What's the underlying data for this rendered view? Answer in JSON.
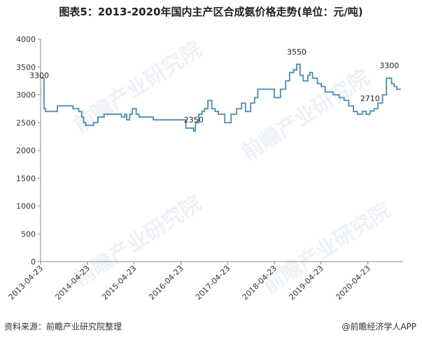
{
  "title": "图表5：2013-2020年国内主产区合成氨价格走势(单位：元/吨)",
  "source": "资料来源：前瞻产业研究院整理",
  "brand": "@前瞻经济学人APP",
  "watermark": "前瞻产业研究院",
  "colors": {
    "line": "#4a8ab3",
    "axis": "#888888",
    "text": "#333333"
  },
  "chart_data": {
    "type": "line",
    "title": "图表5：2013-2020年国内主产区合成氨价格走势(单位：元/吨)",
    "xlabel": "",
    "ylabel": "",
    "ylim": [
      0,
      4000
    ],
    "yticks": [
      0,
      500,
      1000,
      1500,
      2000,
      2500,
      3000,
      3500,
      4000
    ],
    "xlim": [
      "2013-04-23",
      "2021-01-23"
    ],
    "xticks": [
      "2013-04-23",
      "2014-04-23",
      "2015-04-23",
      "2016-04-23",
      "2017-04-23",
      "2018-04-23",
      "2019-04-23",
      "2020-04-23"
    ],
    "grid": false,
    "legend": "none",
    "x": [
      "2013-04-23",
      "2013-05-20",
      "2013-06-01",
      "2013-07-15",
      "2013-09-01",
      "2013-10-20",
      "2014-01-01",
      "2014-02-15",
      "2014-03-10",
      "2014-03-25",
      "2014-04-10",
      "2014-06-10",
      "2014-07-15",
      "2014-09-01",
      "2014-10-01",
      "2014-11-15",
      "2015-01-15",
      "2015-02-10",
      "2015-02-25",
      "2015-03-20",
      "2015-04-10",
      "2015-05-10",
      "2015-06-01",
      "2015-07-01",
      "2015-08-20",
      "2015-09-20",
      "2015-10-25",
      "2016-01-01",
      "2016-03-01",
      "2016-04-23",
      "2016-06-01",
      "2016-08-01",
      "2016-08-15",
      "2016-09-10",
      "2016-10-05",
      "2016-10-25",
      "2016-11-20",
      "2016-12-20",
      "2017-01-15",
      "2017-02-10",
      "2017-03-05",
      "2017-04-01",
      "2017-05-20",
      "2017-07-01",
      "2017-08-10",
      "2017-09-10",
      "2017-10-20",
      "2017-11-20",
      "2017-12-15",
      "2018-01-15",
      "2018-02-20",
      "2018-03-15",
      "2018-04-23",
      "2018-06-10",
      "2018-07-20",
      "2018-08-20",
      "2018-09-20",
      "2018-10-15",
      "2018-11-10",
      "2018-12-05",
      "2018-12-25",
      "2019-01-10",
      "2019-01-25",
      "2019-02-15",
      "2019-03-25",
      "2019-04-25",
      "2019-05-25",
      "2019-06-25",
      "2019-07-25",
      "2019-09-10",
      "2019-10-20",
      "2019-11-25",
      "2020-01-01",
      "2020-02-01",
      "2020-03-10",
      "2020-04-10",
      "2020-05-10",
      "2020-06-10",
      "2020-07-10",
      "2020-08-15",
      "2020-09-15",
      "2020-10-05",
      "2020-10-25",
      "2020-11-15",
      "2020-12-05",
      "2020-12-20",
      "2021-01-05"
    ],
    "series": [
      {
        "values": [
          3300,
          2750,
          2700,
          2700,
          2800,
          2800,
          2750,
          2700,
          2600,
          2500,
          2450,
          2500,
          2600,
          2650,
          2650,
          2650,
          2600,
          2650,
          2550,
          2650,
          2750,
          2650,
          2600,
          2600,
          2600,
          2550,
          2550,
          2550,
          2550,
          2550,
          2400,
          2350,
          2500,
          2650,
          2700,
          2750,
          2900,
          2750,
          2700,
          2650,
          2650,
          2500,
          2650,
          2750,
          2850,
          2700,
          2850,
          2950,
          3100,
          3100,
          3100,
          3100,
          2950,
          3100,
          3250,
          3400,
          3450,
          3550,
          3350,
          3250,
          3250,
          3350,
          3400,
          3300,
          3200,
          3150,
          3050,
          3050,
          3000,
          2950,
          2900,
          2800,
          2700,
          2650,
          2700,
          2650,
          2710,
          2750,
          2850,
          3000,
          3300,
          3300,
          3200,
          3150,
          3100,
          3100,
          3100
        ]
      }
    ],
    "annotations": [
      {
        "x": "2013-04-23",
        "y": 3300,
        "text": "3300"
      },
      {
        "x": "2016-08-01",
        "y": 2350,
        "text": "2350"
      },
      {
        "x": "2018-10-15",
        "y": 3550,
        "text": "3550"
      },
      {
        "x": "2020-05-10",
        "y": 2710,
        "text": "2710"
      },
      {
        "x": "2020-09-15",
        "y": 3300,
        "text": "3300"
      }
    ]
  }
}
